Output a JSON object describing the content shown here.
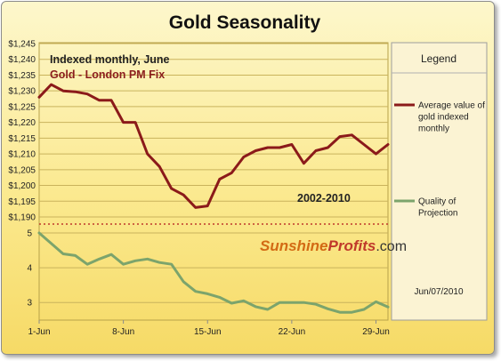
{
  "chart_data": {
    "type": "line",
    "title": "Gold Seasonality",
    "annotations": {
      "subtitle": "Indexed monthly, June",
      "series_label": "Gold - London PM Fix",
      "period": "2002-2010",
      "date": "Jun/07/2010"
    },
    "watermark": {
      "part1": "Sunshine",
      "part2": "Profits",
      "part3": ".com"
    },
    "legend": {
      "title": "Legend",
      "position": "right"
    },
    "x_ticks": [
      "1-Jun",
      "8-Jun",
      "15-Jun",
      "22-Jun",
      "29-Jun"
    ],
    "x_tick_days": [
      1,
      8,
      15,
      22,
      29
    ],
    "xlim": [
      1,
      30
    ],
    "upper_panel": {
      "ylim": [
        1190,
        1245
      ],
      "y_ticks": [
        "$1,245",
        "$1,240",
        "$1,235",
        "$1,230",
        "$1,225",
        "$1,220",
        "$1,215",
        "$1,210",
        "$1,205",
        "$1,200",
        "$1,195",
        "$1,190"
      ],
      "y_tick_values": [
        1245,
        1240,
        1235,
        1230,
        1225,
        1220,
        1215,
        1210,
        1205,
        1200,
        1195,
        1190
      ],
      "series": [
        {
          "name": "Average value of gold indexed monthly",
          "legend_lines": [
            "Average value of",
            "gold indexed",
            "monthly"
          ],
          "color": "#8b1a1a",
          "x": [
            1,
            2,
            3,
            4,
            5,
            6,
            7,
            8,
            9,
            10,
            11,
            12,
            13,
            14,
            15,
            16,
            17,
            18,
            19,
            20,
            21,
            22,
            23,
            24,
            25,
            26,
            27,
            28,
            29,
            30
          ],
          "values": [
            1228,
            1232,
            1230,
            1229.7,
            1229,
            1227,
            1227,
            1220,
            1220,
            1210,
            1206,
            1199,
            1197,
            1193,
            1193.5,
            1202,
            1204,
            1209,
            1211,
            1212,
            1212,
            1213,
            1207,
            1211,
            1212,
            1215.5,
            1216,
            1213,
            1210,
            1213
          ]
        }
      ]
    },
    "lower_panel": {
      "ylim": [
        2.75,
        5
      ],
      "y_ticks": [
        "5",
        "4",
        "3"
      ],
      "y_tick_values": [
        5,
        4,
        3
      ],
      "series": [
        {
          "name": "Quality of Projection",
          "legend_lines": [
            "Quality of",
            "Projection"
          ],
          "color": "#7ca46c",
          "x": [
            1,
            2,
            3,
            4,
            5,
            6,
            7,
            8,
            9,
            10,
            11,
            12,
            13,
            14,
            15,
            16,
            17,
            18,
            19,
            20,
            21,
            22,
            23,
            24,
            25,
            26,
            27,
            28,
            29,
            30
          ],
          "values": [
            5,
            4.7,
            4.4,
            4.35,
            4.1,
            4.25,
            4.38,
            4.1,
            4.2,
            4.25,
            4.15,
            4.1,
            3.6,
            3.32,
            3.25,
            3.15,
            2.98,
            3.05,
            2.88,
            2.8,
            3,
            3,
            3,
            2.95,
            2.82,
            2.72,
            2.72,
            2.8,
            3.02,
            2.87
          ]
        }
      ]
    }
  }
}
